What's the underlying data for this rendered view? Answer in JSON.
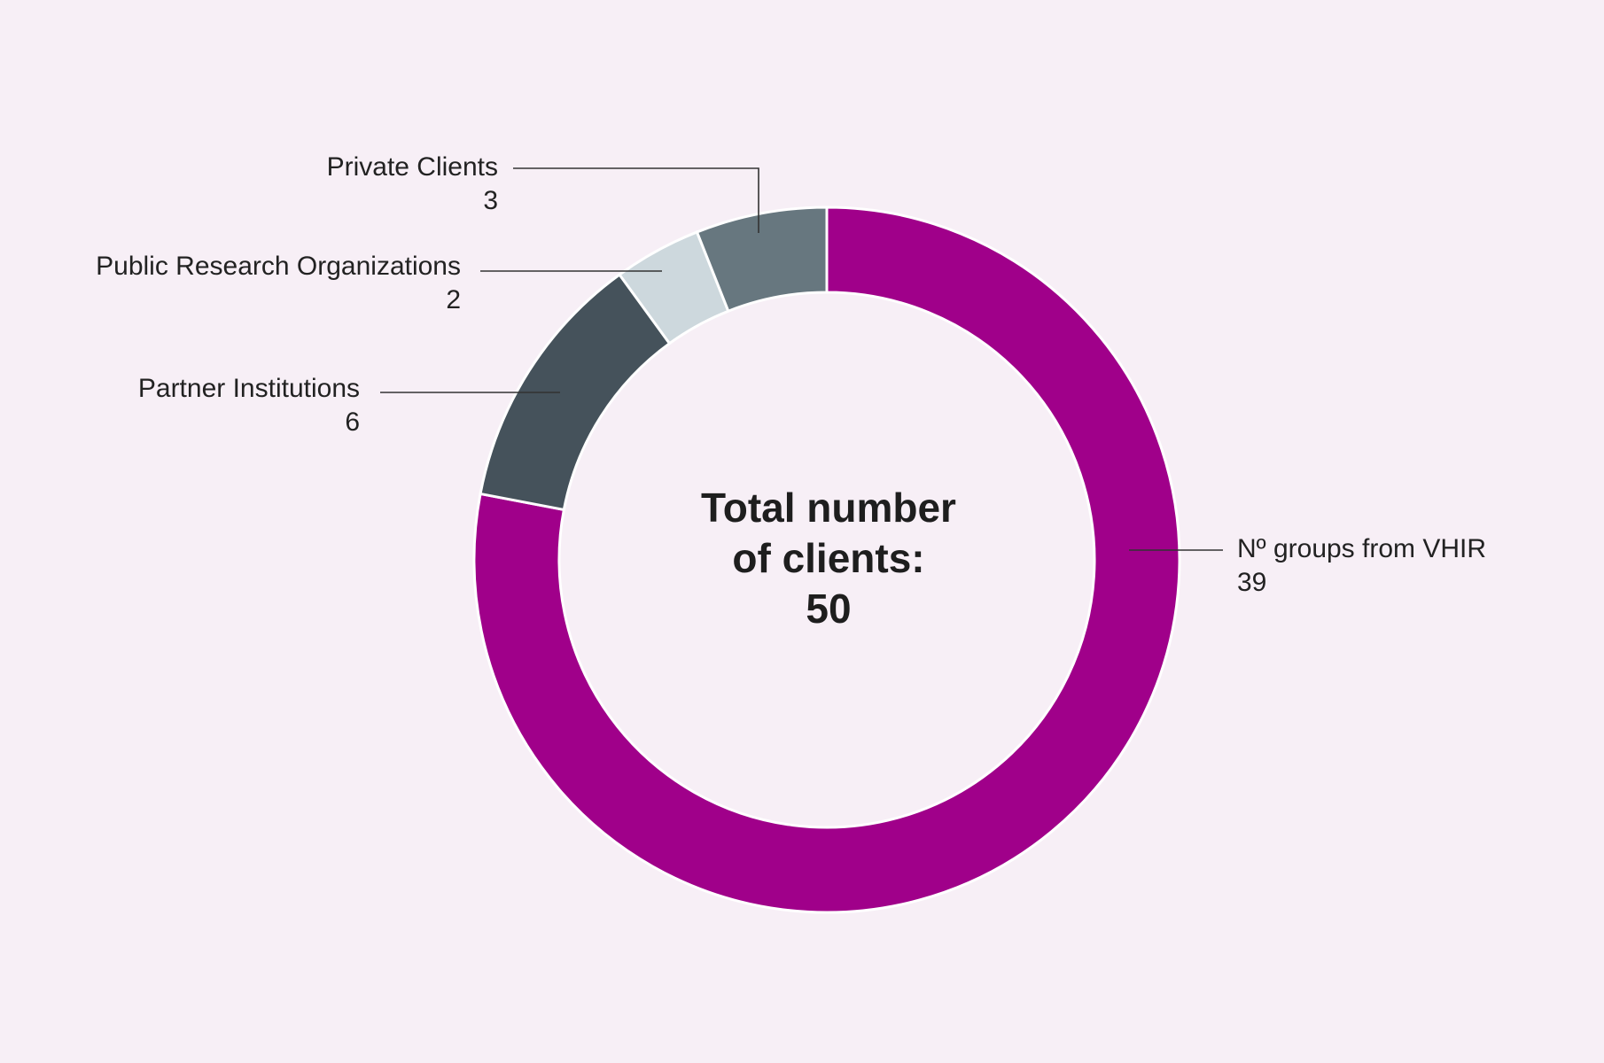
{
  "chart_data": {
    "type": "donut",
    "categories": [
      "Nº groups from VHIR",
      "Partner Institutions",
      "Public Research Organizations",
      "Private Clients"
    ],
    "values": [
      39,
      6,
      2,
      3
    ],
    "colors": [
      "#a0008a",
      "#45525b",
      "#cdd8dd",
      "#67777f"
    ],
    "center_text": [
      "Total number",
      "of clients:"
    ],
    "total": 50
  }
}
